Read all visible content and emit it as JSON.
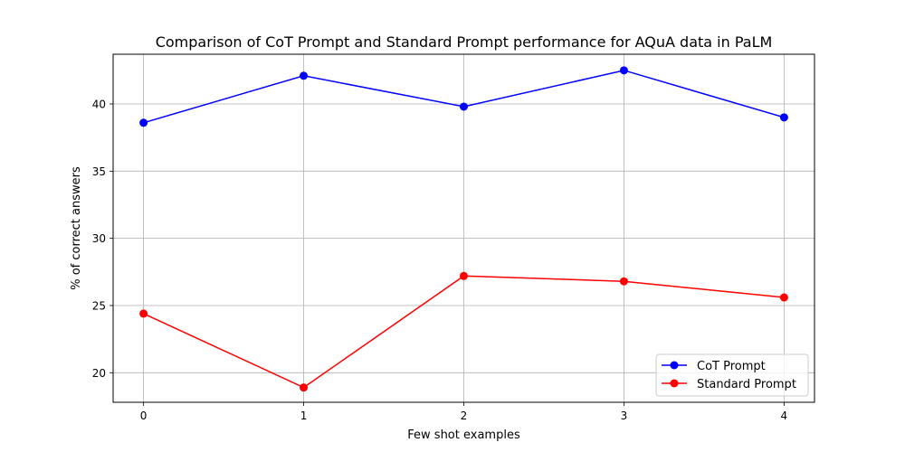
{
  "chart_data": {
    "type": "line",
    "title": "Comparison of CoT Prompt and Standard Prompt performance for AQuA data in PaLM",
    "xlabel": "Few shot examples",
    "ylabel": "% of correct answers",
    "x": [
      0,
      1,
      2,
      3,
      4
    ],
    "xticks": [
      "0",
      "1",
      "2",
      "3",
      "4"
    ],
    "yticks": [
      "20",
      "25",
      "30",
      "35",
      "40"
    ],
    "xlim": [
      -0.19,
      4.19
    ],
    "ylim": [
      17.8,
      43.7
    ],
    "grid": true,
    "legend_position": "bottom-right",
    "series": [
      {
        "name": "CoT Prompt",
        "color": "#0000ff",
        "values": [
          38.6,
          42.1,
          39.8,
          42.5,
          39.0
        ]
      },
      {
        "name": "Standard Prompt",
        "color": "#ff0000",
        "values": [
          24.4,
          18.9,
          27.2,
          26.8,
          25.6
        ]
      }
    ]
  }
}
